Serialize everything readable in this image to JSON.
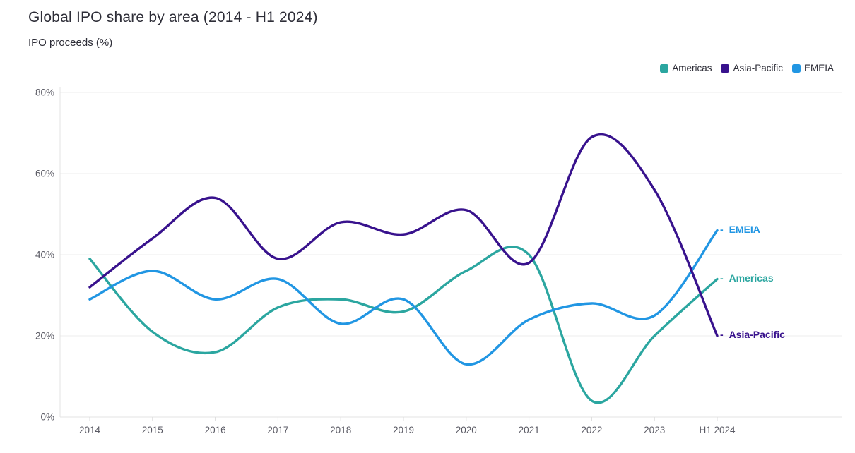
{
  "header": {
    "title": "Global IPO share by area (2014 - H1 2024)",
    "subtitle": "IPO proceeds (%)"
  },
  "chart_data": {
    "type": "line",
    "title": "Global IPO share by area (2014 - H1 2024)",
    "ylabel": "IPO proceeds (%)",
    "xlabel": "",
    "x_categories": [
      "2014",
      "2015",
      "2016",
      "2017",
      "2018",
      "2019",
      "2020",
      "2021",
      "2022",
      "2023",
      "H1 2024"
    ],
    "series": [
      {
        "name": "Americas",
        "color": "#2BA6A0",
        "values": [
          39,
          21,
          16,
          27,
          29,
          26,
          36,
          40,
          4,
          20,
          34
        ]
      },
      {
        "name": "Asia-Pacific",
        "color": "#38128D",
        "values": [
          32,
          44,
          54,
          39,
          48,
          45,
          51,
          38,
          69,
          56,
          20
        ]
      },
      {
        "name": "EMEIA",
        "color": "#2196E3",
        "values": [
          29,
          36,
          29,
          34,
          23,
          29,
          13,
          24,
          28,
          25,
          46
        ]
      }
    ],
    "y_ticks": [
      "0%",
      "20%",
      "40%",
      "60%",
      "80%"
    ],
    "y_tick_values": [
      0,
      20,
      40,
      60,
      80
    ],
    "ylim": [
      0,
      80
    ],
    "grid": "horizontal",
    "legend_position": "top-right",
    "end_label_prefix": "- ",
    "curve": "smooth"
  }
}
